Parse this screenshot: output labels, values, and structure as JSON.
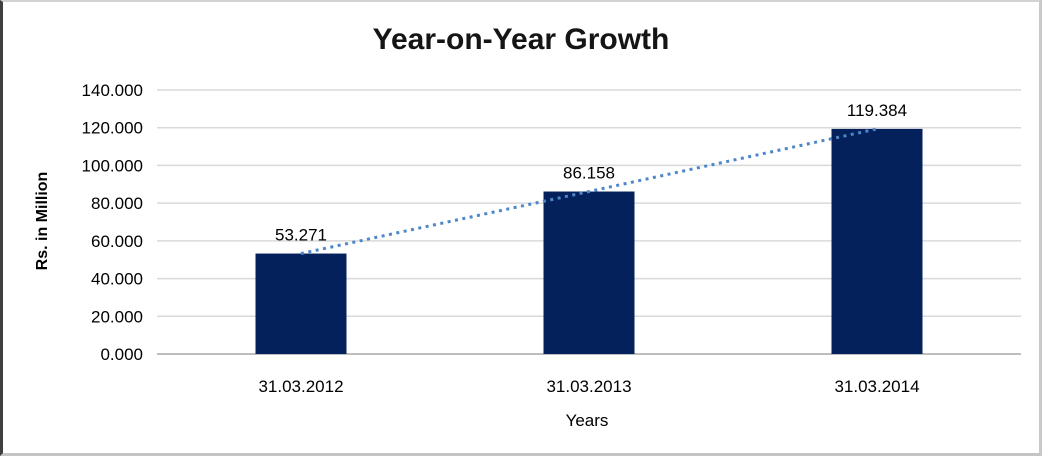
{
  "frame": {
    "background": "#ffffff",
    "border_color": "#c9c9c9"
  },
  "chart_data": {
    "type": "bar",
    "title": "Year-on-Year Growth",
    "xlabel": "Years",
    "ylabel": "Rs. in Million",
    "categories": [
      "31.03.2012",
      "31.03.2013",
      "31.03.2014"
    ],
    "values": [
      53.271,
      86.158,
      119.384
    ],
    "value_labels": [
      "53.271",
      "86.158",
      "119.384"
    ],
    "ylim": [
      0,
      140
    ],
    "ytick_labels": [
      "0.000",
      "20.000",
      "40.000",
      "60.000",
      "80.000",
      "100.000",
      "120.000",
      "140.000"
    ],
    "grid": true,
    "legend_position": "none",
    "trendline": {
      "type": "linear",
      "style": "dotted",
      "color": "#4E87C9"
    },
    "colors": {
      "bar": "#04215C",
      "gridline": "#D9D9D9",
      "axis_line": "#ADADAD",
      "label_text": "#000000",
      "title_text": "#151515"
    }
  }
}
